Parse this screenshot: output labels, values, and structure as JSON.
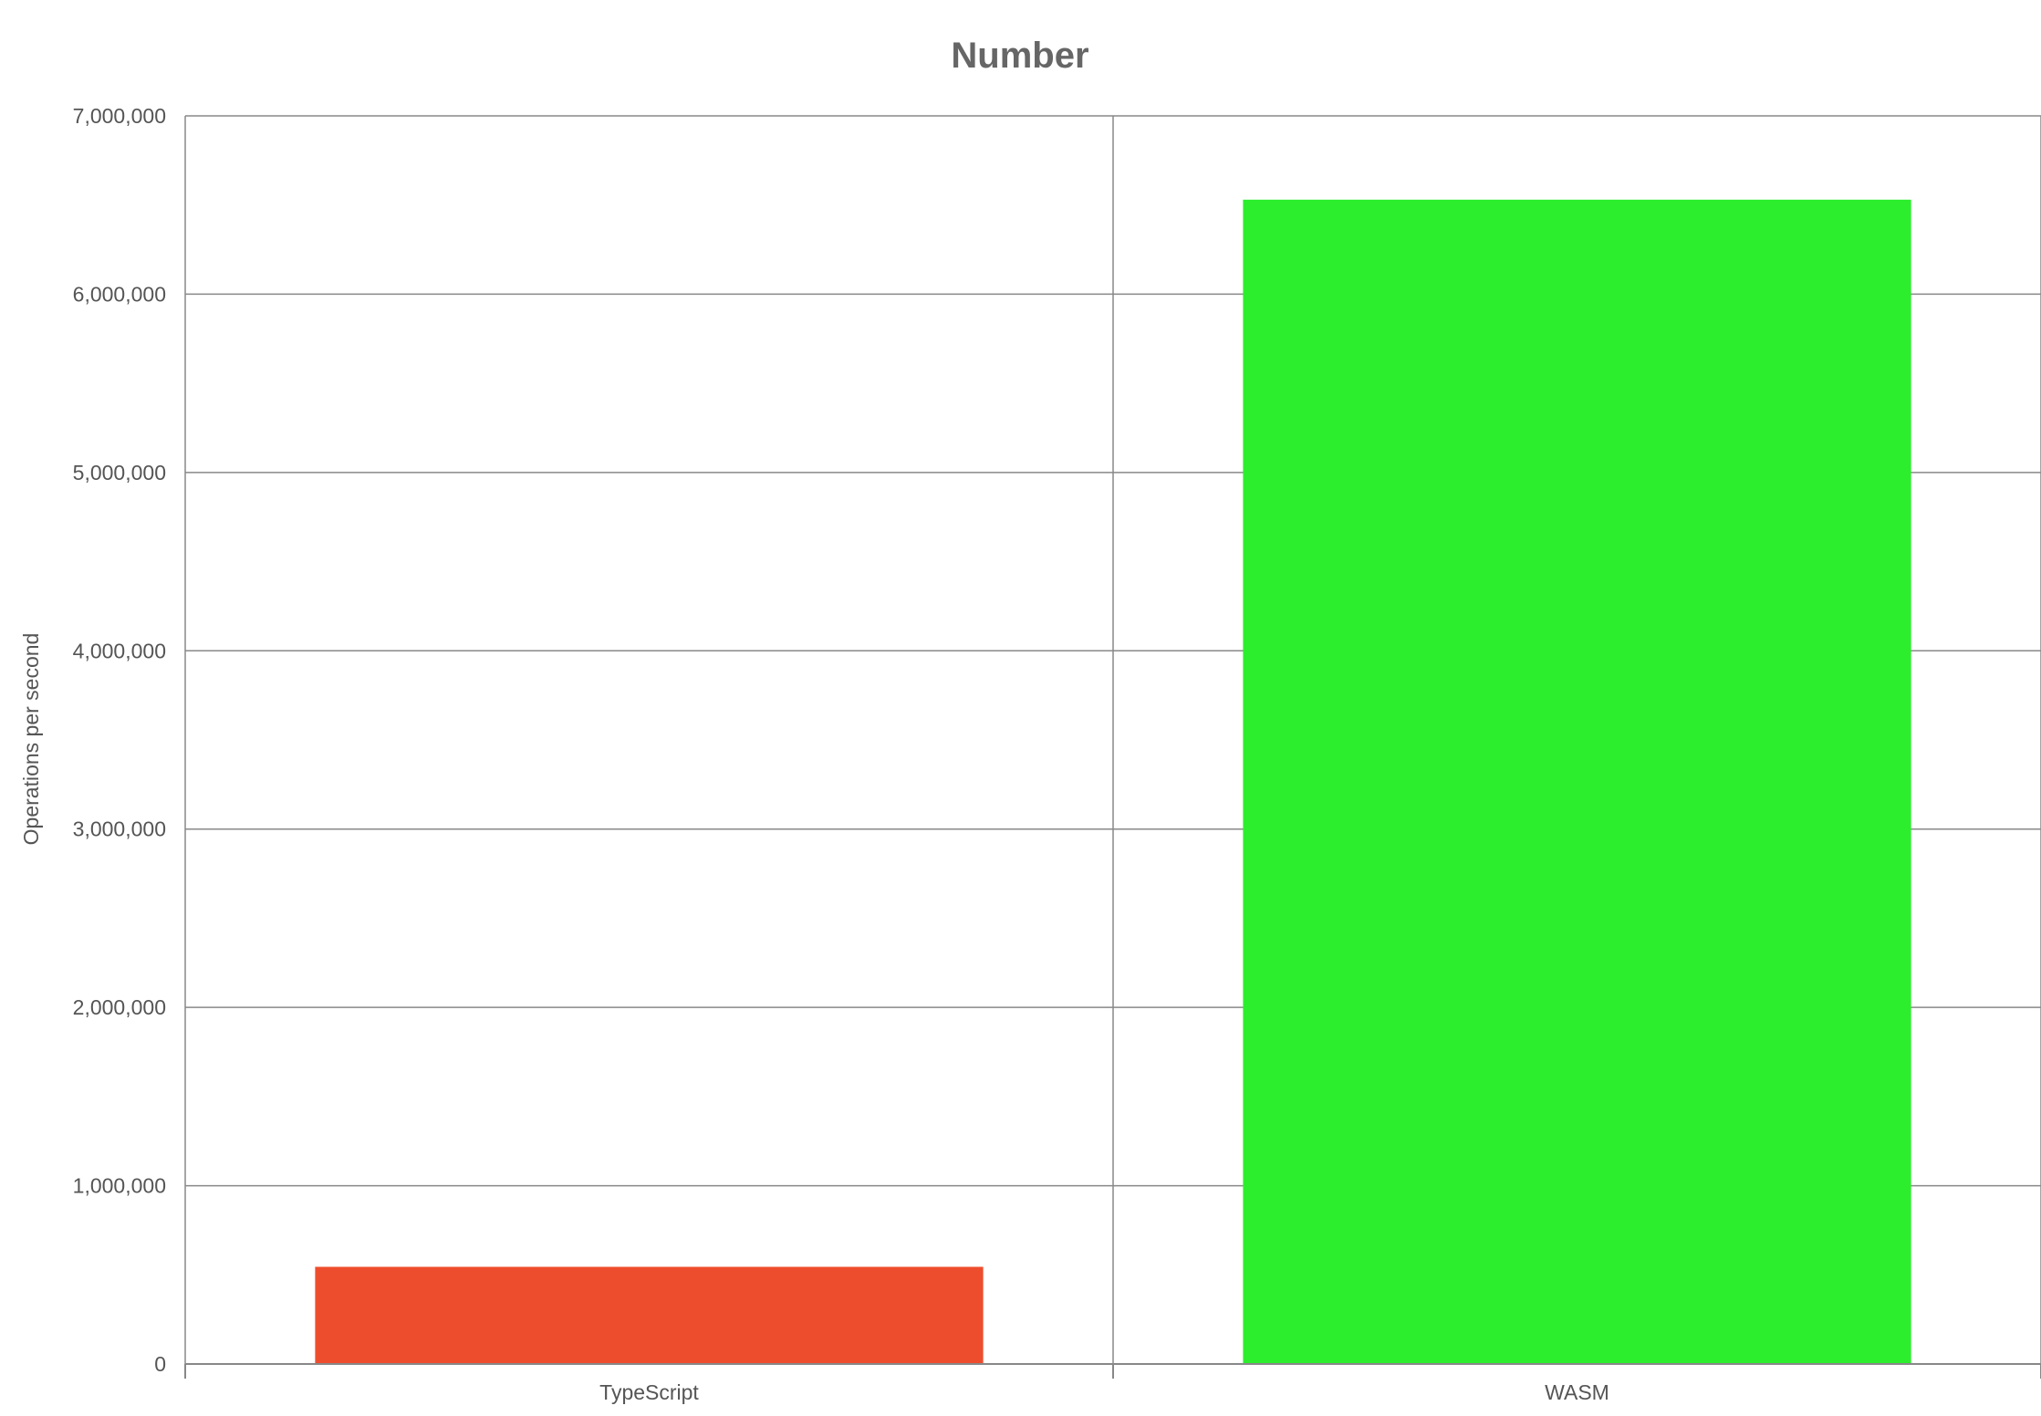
{
  "chart_data": {
    "type": "bar",
    "title": "Number",
    "xlabel": "",
    "ylabel": "Operations per second",
    "categories": [
      "TypeScript",
      "WASM"
    ],
    "values": [
      545000,
      6530000
    ],
    "colors": [
      "#ee4d2d",
      "#2cee2d"
    ],
    "ylim": [
      0,
      7000000
    ],
    "yticks": [
      0,
      1000000,
      2000000,
      3000000,
      4000000,
      5000000,
      6000000,
      7000000
    ],
    "ytick_labels": [
      "0",
      "1,000,000",
      "2,000,000",
      "3,000,000",
      "4,000,000",
      "5,000,000",
      "6,000,000",
      "7,000,000"
    ],
    "grid": true,
    "legend": "none"
  },
  "colors": {
    "text": "#555555",
    "title": "#666666",
    "grid": "#888888"
  }
}
